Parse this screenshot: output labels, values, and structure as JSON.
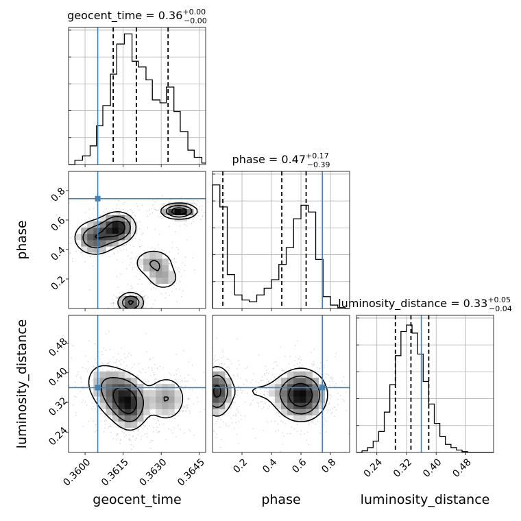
{
  "chart_data": {
    "type": "corner",
    "parameters": [
      {
        "key": "geocent_time",
        "label": "geocent_time",
        "range": [
          0.35935,
          0.36475
        ],
        "ticks": [
          "0.3600",
          "0.3615",
          "0.3630",
          "0.3645"
        ],
        "tick_values": [
          0.36,
          0.3615,
          0.363,
          0.3645
        ],
        "truth": 0.3605,
        "title": {
          "name": "geocent_time",
          "value": "0.36",
          "plus": "+0.00",
          "minus": "−0.00"
        },
        "quantiles": [
          0.36111,
          0.36202,
          0.36327
        ],
        "hist_edges": [
          0.35935,
          0.3596,
          0.3599,
          0.3602,
          0.36045,
          0.3607,
          0.361,
          0.36125,
          0.36155,
          0.36185,
          0.3621,
          0.3624,
          0.36265,
          0.36295,
          0.3632,
          0.3635,
          0.36375,
          0.36405,
          0.3643,
          0.3646,
          0.36475
        ],
        "hist_counts": [
          0,
          0.03,
          0.06,
          0.13,
          0.27,
          0.41,
          0.63,
          0.84,
          0.91,
          0.72,
          0.68,
          0.59,
          0.45,
          0.43,
          0.54,
          0.37,
          0.23,
          0.1,
          0.05,
          0.01
        ]
      },
      {
        "key": "phase",
        "label": "phase",
        "range": [
          0,
          0.93
        ],
        "ticks": [
          "0.2",
          "0.4",
          "0.6",
          "0.8"
        ],
        "tick_values": [
          0.2,
          0.4,
          0.6,
          0.8
        ],
        "truth": 0.745,
        "title": {
          "name": "phase",
          "value": "0.47",
          "plus": "+0.17",
          "minus": "−0.39"
        },
        "quantiles": [
          0.07,
          0.47,
          0.635
        ],
        "hist_edges": [
          0,
          0.05,
          0.1,
          0.15,
          0.2,
          0.25,
          0.3,
          0.35,
          0.4,
          0.45,
          0.5,
          0.55,
          0.6,
          0.65,
          0.7,
          0.75,
          0.8,
          0.85,
          0.9,
          0.93
        ],
        "hist_counts": [
          0.73,
          0.6,
          0.2,
          0.08,
          0.05,
          0.04,
          0.08,
          0.12,
          0.17,
          0.26,
          0.36,
          0.53,
          0.61,
          0.57,
          0.29,
          0.07,
          0.02,
          0.005,
          0
        ],
        "hist_ymax": 0.81
      },
      {
        "key": "luminosity_distance",
        "label": "luminosity_distance",
        "range": [
          0.185,
          0.555
        ],
        "ticks": [
          "0.24",
          "0.32",
          "0.40",
          "0.48"
        ],
        "tick_values": [
          0.24,
          0.32,
          0.4,
          0.48
        ],
        "truth": 0.36,
        "title": {
          "name": "luminosity_distance",
          "value": "0.33",
          "plus": "+0.05",
          "minus": "−0.04"
        },
        "quantiles": [
          0.29,
          0.332,
          0.38
        ],
        "hist_edges": [
          0.185,
          0.2,
          0.215,
          0.23,
          0.245,
          0.26,
          0.275,
          0.29,
          0.305,
          0.32,
          0.335,
          0.35,
          0.365,
          0.38,
          0.395,
          0.41,
          0.425,
          0.44,
          0.455,
          0.47,
          0.485,
          0.5,
          0.555
        ],
        "hist_counts": [
          0,
          0.01,
          0.03,
          0.07,
          0.13,
          0.25,
          0.42,
          0.6,
          0.75,
          0.79,
          0.74,
          0.61,
          0.44,
          0.3,
          0.18,
          0.1,
          0.05,
          0.03,
          0.015,
          0.005,
          0,
          0
        ],
        "hist_ymax": 0.85
      }
    ],
    "pairs": [
      {
        "x": "geocent_time",
        "y": "phase",
        "modes": [
          [
            0.3604,
            0.48,
            0.0005,
            0.07,
            0.7
          ],
          [
            0.3613,
            0.55,
            0.0004,
            0.06,
            0.9
          ],
          [
            0.3637,
            0.66,
            0.0004,
            0.03,
            1.0
          ],
          [
            0.3627,
            0.31,
            0.0005,
            0.06,
            0.45
          ],
          [
            0.3618,
            0.04,
            0.0003,
            0.04,
            0.8
          ],
          [
            0.3631,
            0.2,
            0.0004,
            0.05,
            0.35
          ]
        ]
      },
      {
        "x": "geocent_time",
        "y": "luminosity_distance",
        "modes": [
          [
            0.3613,
            0.34,
            0.0005,
            0.04,
            0.9
          ],
          [
            0.3618,
            0.31,
            0.0004,
            0.04,
            1.0
          ],
          [
            0.3632,
            0.33,
            0.0005,
            0.04,
            0.7
          ],
          [
            0.3606,
            0.38,
            0.0005,
            0.04,
            0.4
          ]
        ]
      },
      {
        "x": "phase",
        "y": "luminosity_distance",
        "modes": [
          [
            0.03,
            0.35,
            0.06,
            0.04,
            0.8
          ],
          [
            0.6,
            0.34,
            0.1,
            0.04,
            1.0
          ],
          [
            0.3,
            0.35,
            0.12,
            0.03,
            0.2
          ]
        ]
      }
    ]
  }
}
